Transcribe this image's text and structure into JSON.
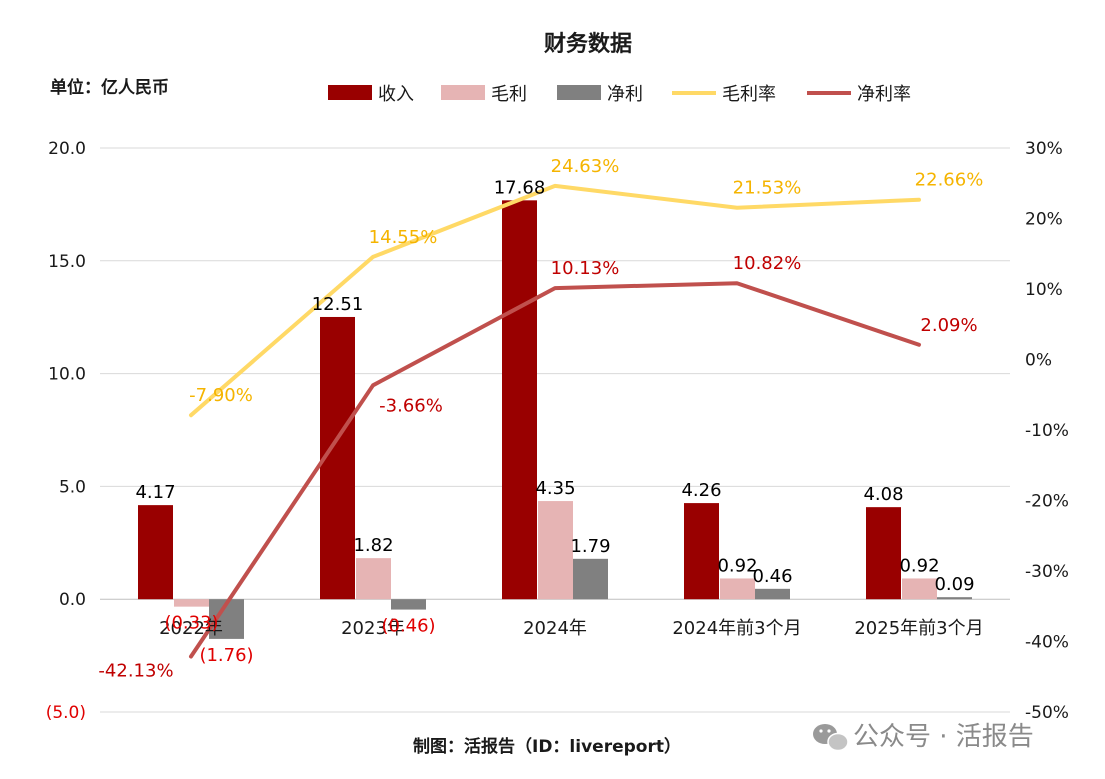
{
  "chart_data": {
    "type": "bar",
    "title": "财务数据",
    "unit_label": "单位：亿人民币",
    "categories": [
      "2022年",
      "2023年",
      "2024年",
      "2024年前3个月",
      "2025年前3个月"
    ],
    "bar_series": [
      {
        "name": "收入",
        "color": "#990000",
        "values": [
          4.17,
          12.51,
          17.68,
          4.26,
          4.08
        ],
        "labels": [
          "4.17",
          "12.51",
          "17.68",
          "4.26",
          "4.08"
        ]
      },
      {
        "name": "毛利",
        "color": "#e6b4b4",
        "values": [
          -0.33,
          1.82,
          4.35,
          0.92,
          0.92
        ],
        "labels": [
          "(0.33)",
          "1.82",
          "4.35",
          "0.92",
          "0.92"
        ]
      },
      {
        "name": "净利",
        "color": "#808080",
        "values": [
          -1.76,
          -0.46,
          1.79,
          0.46,
          0.09
        ],
        "labels": [
          "(1.76)",
          "(0.46)",
          "1.79",
          "0.46",
          "0.09"
        ]
      }
    ],
    "line_series": [
      {
        "name": "毛利率",
        "color": "#ffd966",
        "label_color": "#f5b400",
        "values": [
          -7.9,
          14.55,
          24.63,
          21.53,
          22.66
        ],
        "labels": [
          "-7.90%",
          "14.55%",
          "24.63%",
          "21.53%",
          "22.66%"
        ]
      },
      {
        "name": "净利率",
        "color": "#c0504d",
        "label_color": "#c00000",
        "values": [
          -42.13,
          -3.66,
          10.13,
          10.82,
          2.09
        ],
        "labels": [
          "-42.13%",
          "-3.66%",
          "10.13%",
          "10.82%",
          "2.09%"
        ]
      }
    ],
    "legend_order": [
      "收入",
      "毛利",
      "净利",
      "毛利率",
      "净利率"
    ],
    "legend_position": "top",
    "y_left": {
      "ylim": [
        -5,
        20
      ],
      "ticks": [
        20,
        15,
        10,
        5,
        0,
        -5
      ],
      "tick_labels": [
        "20.0",
        "15.0",
        "10.0",
        "5.0",
        "0.0",
        "(5.0)"
      ]
    },
    "y_right": {
      "ylim": [
        -50,
        30
      ],
      "ticks": [
        30,
        20,
        10,
        0,
        -10,
        -20,
        -30,
        -40,
        -50
      ],
      "tick_labels": [
        "30%",
        "20%",
        "10%",
        "0%",
        "-10%",
        "-20%",
        "-30%",
        "-40%",
        "-50%"
      ]
    },
    "grid": true
  },
  "footer": {
    "credit": "制图：活报告（ID：livereport）",
    "watermark": "公众号 · 活报告"
  }
}
